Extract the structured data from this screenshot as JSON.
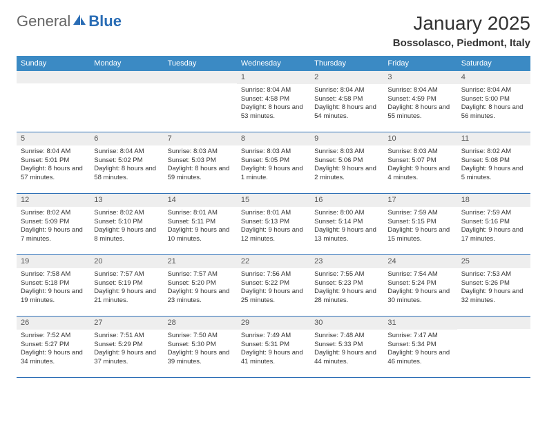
{
  "logo": {
    "text1": "General",
    "text2": "Blue"
  },
  "title": "January 2025",
  "location": "Bossolasco, Piedmont, Italy",
  "colors": {
    "header_bg": "#3b8ac4",
    "header_text": "#ffffff",
    "week_border": "#2a6db5",
    "daynum_bg": "#eeeeee",
    "body_text": "#333333"
  },
  "day_headers": [
    "Sunday",
    "Monday",
    "Tuesday",
    "Wednesday",
    "Thursday",
    "Friday",
    "Saturday"
  ],
  "weeks": [
    [
      {
        "n": "",
        "sr": "",
        "ss": "",
        "dl": ""
      },
      {
        "n": "",
        "sr": "",
        "ss": "",
        "dl": ""
      },
      {
        "n": "",
        "sr": "",
        "ss": "",
        "dl": ""
      },
      {
        "n": "1",
        "sr": "Sunrise: 8:04 AM",
        "ss": "Sunset: 4:58 PM",
        "dl": "Daylight: 8 hours and 53 minutes."
      },
      {
        "n": "2",
        "sr": "Sunrise: 8:04 AM",
        "ss": "Sunset: 4:58 PM",
        "dl": "Daylight: 8 hours and 54 minutes."
      },
      {
        "n": "3",
        "sr": "Sunrise: 8:04 AM",
        "ss": "Sunset: 4:59 PM",
        "dl": "Daylight: 8 hours and 55 minutes."
      },
      {
        "n": "4",
        "sr": "Sunrise: 8:04 AM",
        "ss": "Sunset: 5:00 PM",
        "dl": "Daylight: 8 hours and 56 minutes."
      }
    ],
    [
      {
        "n": "5",
        "sr": "Sunrise: 8:04 AM",
        "ss": "Sunset: 5:01 PM",
        "dl": "Daylight: 8 hours and 57 minutes."
      },
      {
        "n": "6",
        "sr": "Sunrise: 8:04 AM",
        "ss": "Sunset: 5:02 PM",
        "dl": "Daylight: 8 hours and 58 minutes."
      },
      {
        "n": "7",
        "sr": "Sunrise: 8:03 AM",
        "ss": "Sunset: 5:03 PM",
        "dl": "Daylight: 8 hours and 59 minutes."
      },
      {
        "n": "8",
        "sr": "Sunrise: 8:03 AM",
        "ss": "Sunset: 5:05 PM",
        "dl": "Daylight: 9 hours and 1 minute."
      },
      {
        "n": "9",
        "sr": "Sunrise: 8:03 AM",
        "ss": "Sunset: 5:06 PM",
        "dl": "Daylight: 9 hours and 2 minutes."
      },
      {
        "n": "10",
        "sr": "Sunrise: 8:03 AM",
        "ss": "Sunset: 5:07 PM",
        "dl": "Daylight: 9 hours and 4 minutes."
      },
      {
        "n": "11",
        "sr": "Sunrise: 8:02 AM",
        "ss": "Sunset: 5:08 PM",
        "dl": "Daylight: 9 hours and 5 minutes."
      }
    ],
    [
      {
        "n": "12",
        "sr": "Sunrise: 8:02 AM",
        "ss": "Sunset: 5:09 PM",
        "dl": "Daylight: 9 hours and 7 minutes."
      },
      {
        "n": "13",
        "sr": "Sunrise: 8:02 AM",
        "ss": "Sunset: 5:10 PM",
        "dl": "Daylight: 9 hours and 8 minutes."
      },
      {
        "n": "14",
        "sr": "Sunrise: 8:01 AM",
        "ss": "Sunset: 5:11 PM",
        "dl": "Daylight: 9 hours and 10 minutes."
      },
      {
        "n": "15",
        "sr": "Sunrise: 8:01 AM",
        "ss": "Sunset: 5:13 PM",
        "dl": "Daylight: 9 hours and 12 minutes."
      },
      {
        "n": "16",
        "sr": "Sunrise: 8:00 AM",
        "ss": "Sunset: 5:14 PM",
        "dl": "Daylight: 9 hours and 13 minutes."
      },
      {
        "n": "17",
        "sr": "Sunrise: 7:59 AM",
        "ss": "Sunset: 5:15 PM",
        "dl": "Daylight: 9 hours and 15 minutes."
      },
      {
        "n": "18",
        "sr": "Sunrise: 7:59 AM",
        "ss": "Sunset: 5:16 PM",
        "dl": "Daylight: 9 hours and 17 minutes."
      }
    ],
    [
      {
        "n": "19",
        "sr": "Sunrise: 7:58 AM",
        "ss": "Sunset: 5:18 PM",
        "dl": "Daylight: 9 hours and 19 minutes."
      },
      {
        "n": "20",
        "sr": "Sunrise: 7:57 AM",
        "ss": "Sunset: 5:19 PM",
        "dl": "Daylight: 9 hours and 21 minutes."
      },
      {
        "n": "21",
        "sr": "Sunrise: 7:57 AM",
        "ss": "Sunset: 5:20 PM",
        "dl": "Daylight: 9 hours and 23 minutes."
      },
      {
        "n": "22",
        "sr": "Sunrise: 7:56 AM",
        "ss": "Sunset: 5:22 PM",
        "dl": "Daylight: 9 hours and 25 minutes."
      },
      {
        "n": "23",
        "sr": "Sunrise: 7:55 AM",
        "ss": "Sunset: 5:23 PM",
        "dl": "Daylight: 9 hours and 28 minutes."
      },
      {
        "n": "24",
        "sr": "Sunrise: 7:54 AM",
        "ss": "Sunset: 5:24 PM",
        "dl": "Daylight: 9 hours and 30 minutes."
      },
      {
        "n": "25",
        "sr": "Sunrise: 7:53 AM",
        "ss": "Sunset: 5:26 PM",
        "dl": "Daylight: 9 hours and 32 minutes."
      }
    ],
    [
      {
        "n": "26",
        "sr": "Sunrise: 7:52 AM",
        "ss": "Sunset: 5:27 PM",
        "dl": "Daylight: 9 hours and 34 minutes."
      },
      {
        "n": "27",
        "sr": "Sunrise: 7:51 AM",
        "ss": "Sunset: 5:29 PM",
        "dl": "Daylight: 9 hours and 37 minutes."
      },
      {
        "n": "28",
        "sr": "Sunrise: 7:50 AM",
        "ss": "Sunset: 5:30 PM",
        "dl": "Daylight: 9 hours and 39 minutes."
      },
      {
        "n": "29",
        "sr": "Sunrise: 7:49 AM",
        "ss": "Sunset: 5:31 PM",
        "dl": "Daylight: 9 hours and 41 minutes."
      },
      {
        "n": "30",
        "sr": "Sunrise: 7:48 AM",
        "ss": "Sunset: 5:33 PM",
        "dl": "Daylight: 9 hours and 44 minutes."
      },
      {
        "n": "31",
        "sr": "Sunrise: 7:47 AM",
        "ss": "Sunset: 5:34 PM",
        "dl": "Daylight: 9 hours and 46 minutes."
      },
      {
        "n": "",
        "sr": "",
        "ss": "",
        "dl": ""
      }
    ]
  ]
}
